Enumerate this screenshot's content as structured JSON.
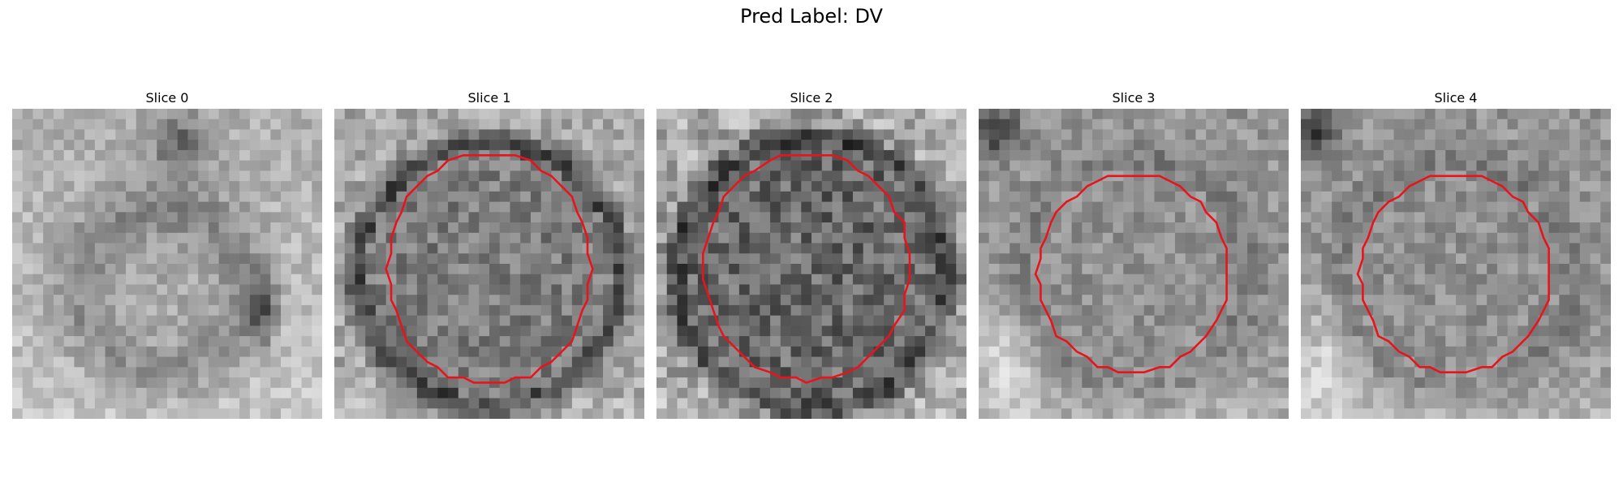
{
  "figure": {
    "title": "Pred Label: DV"
  },
  "panels": [
    {
      "title": "Slice 0",
      "has_contour": false
    },
    {
      "title": "Slice 1",
      "has_contour": true
    },
    {
      "title": "Slice 2",
      "has_contour": true
    },
    {
      "title": "Slice 3",
      "has_contour": true
    },
    {
      "title": "Slice 4",
      "has_contour": true
    }
  ],
  "colors": {
    "contour": "#e8141c",
    "background": "#ffffff"
  }
}
